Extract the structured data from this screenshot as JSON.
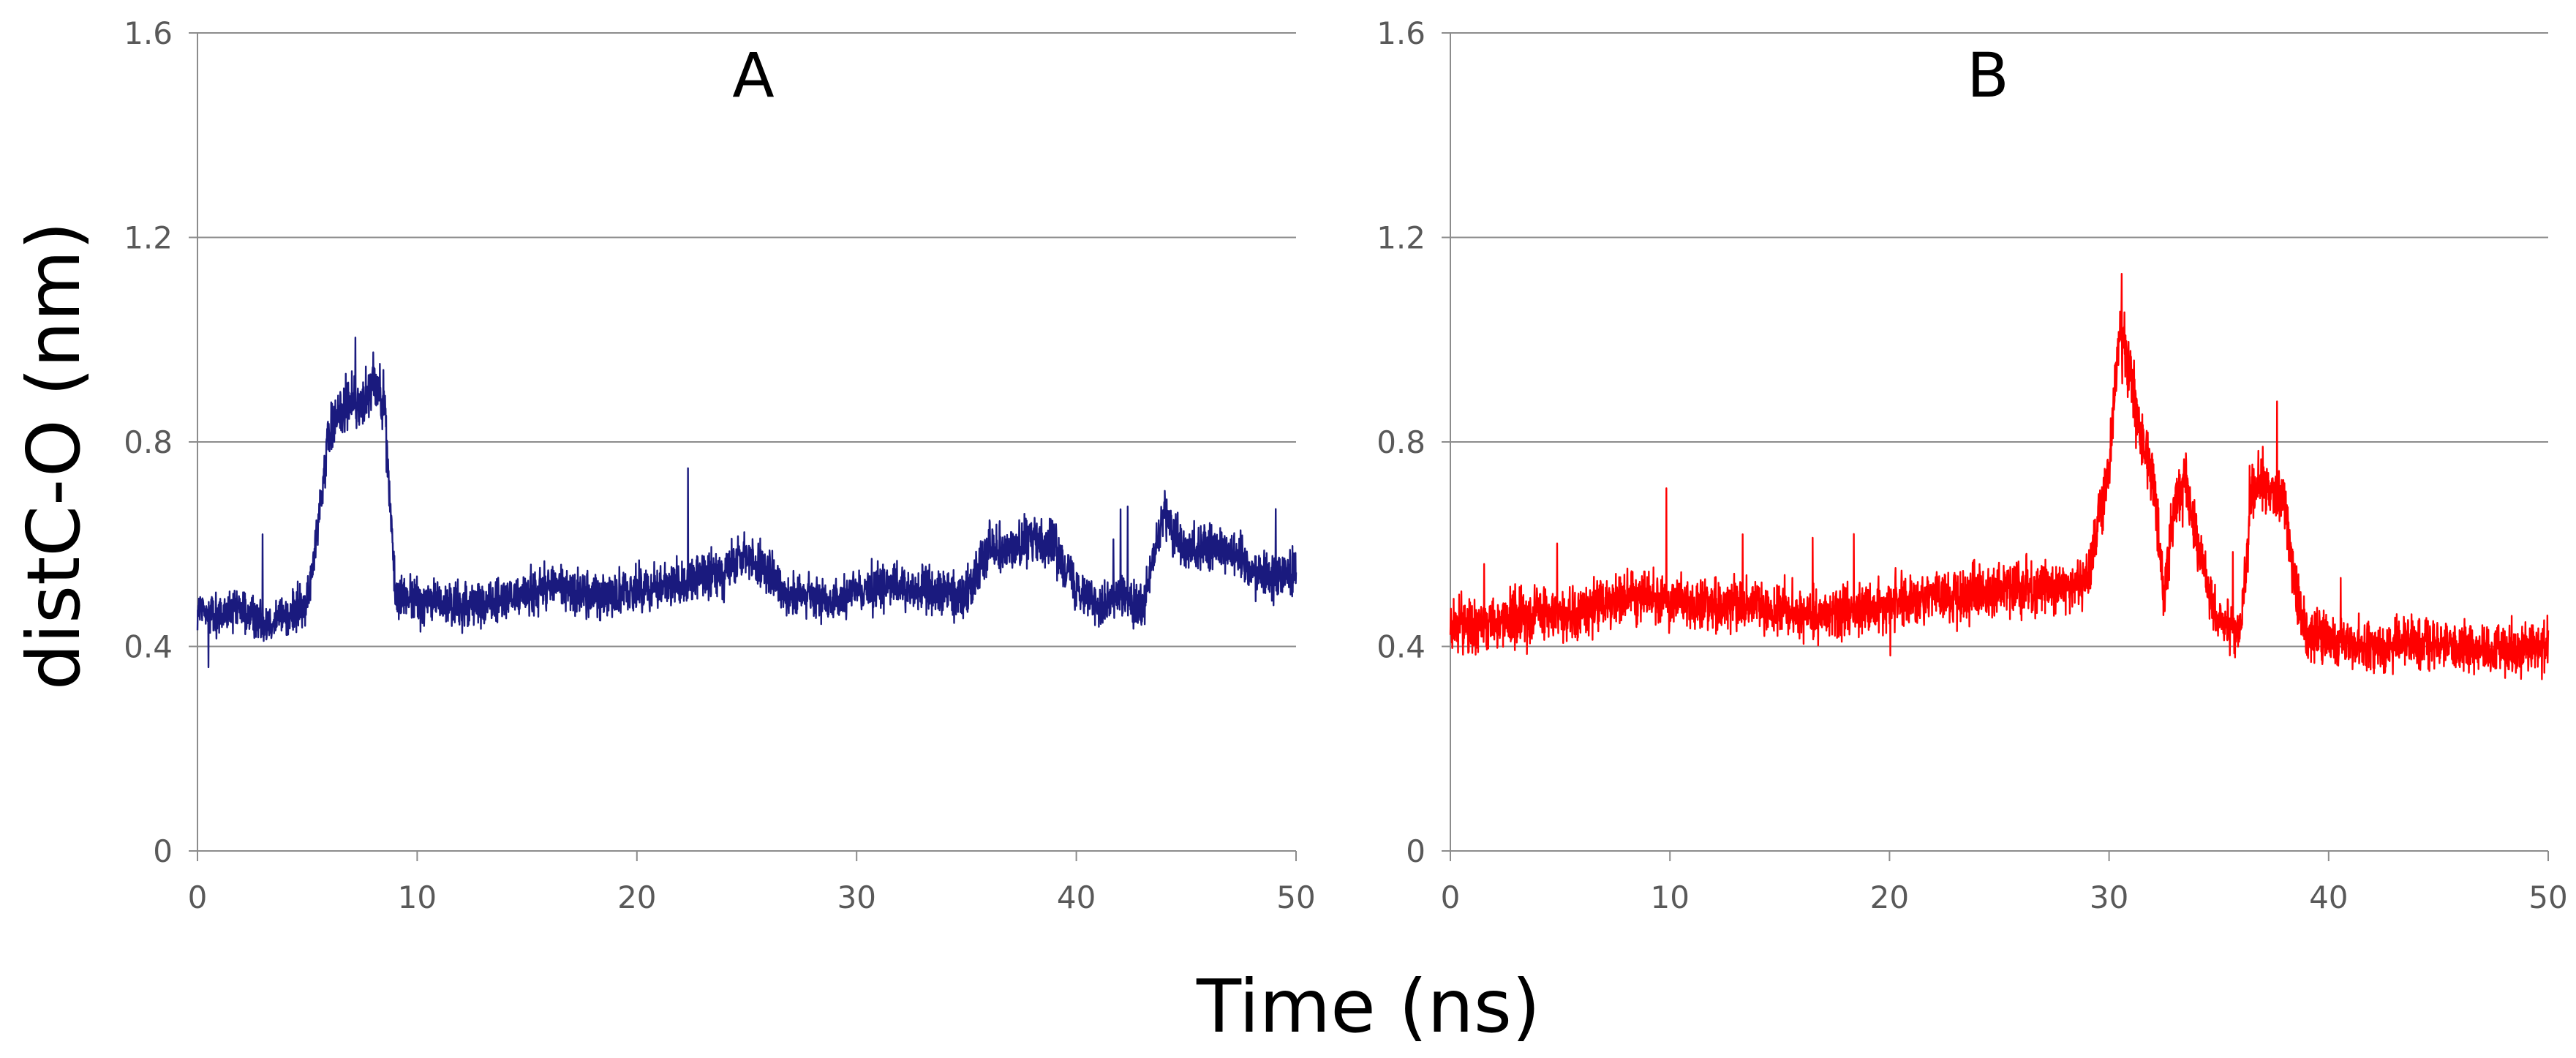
{
  "figure": {
    "ylabel": "distC-O (nm)",
    "xlabel": "Time (ns)"
  },
  "chart_data": [
    {
      "type": "line",
      "title": "A",
      "xlabel": "Time (ns)",
      "ylabel": "distC-O (nm)",
      "xlim": [
        0,
        50
      ],
      "ylim": [
        0,
        1.6
      ],
      "xticks": [
        "0",
        "10",
        "20",
        "30",
        "40",
        "50"
      ],
      "yticks": [
        "0",
        "0.4",
        "0.8",
        "1.2",
        "1.6"
      ],
      "grid": "horizontal",
      "color": "#1a1a7e",
      "series": [
        {
          "x": [
            0,
            1,
            2,
            3,
            4,
            5,
            6,
            6.5,
            7,
            7.5,
            8,
            8.5,
            9,
            10,
            12,
            14,
            16,
            18,
            20,
            22,
            24,
            25,
            27,
            29,
            31,
            33,
            35,
            36,
            37,
            38,
            39,
            40,
            41,
            42,
            43,
            44,
            45,
            46,
            47,
            48,
            49,
            50
          ],
          "values": [
            0.47,
            0.46,
            0.47,
            0.45,
            0.46,
            0.48,
            0.82,
            0.86,
            0.88,
            0.87,
            0.93,
            0.88,
            0.5,
            0.49,
            0.48,
            0.49,
            0.52,
            0.5,
            0.51,
            0.53,
            0.54,
            0.58,
            0.5,
            0.49,
            0.52,
            0.51,
            0.5,
            0.6,
            0.59,
            0.61,
            0.6,
            0.52,
            0.48,
            0.5,
            0.47,
            0.66,
            0.58,
            0.6,
            0.59,
            0.55,
            0.54,
            0.55
          ]
        }
      ]
    },
    {
      "type": "line",
      "title": "B",
      "xlabel": "Time (ns)",
      "ylabel": "distC-O (nm)",
      "xlim": [
        0,
        50
      ],
      "ylim": [
        0,
        1.6
      ],
      "xticks": [
        "0",
        "10",
        "20",
        "30",
        "40",
        "50"
      ],
      "yticks": [
        "0",
        "0.4",
        "0.8",
        "1.2",
        "1.6"
      ],
      "grid": "horizontal",
      "color": "#ff0000",
      "series": [
        {
          "x": [
            0,
            2,
            4,
            6,
            8,
            10,
            12,
            14,
            16,
            18,
            20,
            22,
            24,
            26,
            28,
            29,
            30,
            30.5,
            31,
            31.5,
            32,
            32.5,
            33,
            33.5,
            34,
            35,
            36,
            36.5,
            37,
            37.5,
            38,
            38.5,
            39,
            40,
            42,
            44,
            46,
            48,
            50
          ],
          "values": [
            0.44,
            0.45,
            0.46,
            0.47,
            0.5,
            0.49,
            0.47,
            0.48,
            0.46,
            0.47,
            0.48,
            0.5,
            0.5,
            0.51,
            0.52,
            0.53,
            0.75,
            1.02,
            0.93,
            0.8,
            0.72,
            0.5,
            0.68,
            0.72,
            0.6,
            0.45,
            0.43,
            0.7,
            0.72,
            0.7,
            0.68,
            0.5,
            0.42,
            0.41,
            0.4,
            0.41,
            0.4,
            0.39,
            0.4
          ]
        }
      ]
    }
  ]
}
